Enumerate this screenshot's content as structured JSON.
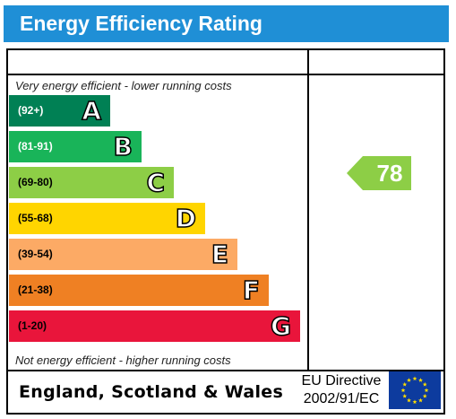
{
  "header": {
    "title": "Energy Efficiency Rating"
  },
  "captions": {
    "top": "Very energy efficient - lower running costs",
    "bottom": "Not energy efficient - higher running costs"
  },
  "bands": [
    {
      "range": "(92+)",
      "letter": "A",
      "color": "#008054",
      "range_color": "#ffffff"
    },
    {
      "range": "(81-91)",
      "letter": "B",
      "color": "#19b459",
      "range_color": "#ffffff"
    },
    {
      "range": "(69-80)",
      "letter": "C",
      "color": "#8dce46",
      "range_color": "#000000"
    },
    {
      "range": "(55-68)",
      "letter": "D",
      "color": "#ffd500",
      "range_color": "#000000"
    },
    {
      "range": "(39-54)",
      "letter": "E",
      "color": "#fcaa65",
      "range_color": "#000000"
    },
    {
      "range": "(21-38)",
      "letter": "F",
      "color": "#ef8023",
      "range_color": "#000000"
    },
    {
      "range": "(1-20)",
      "letter": "G",
      "color": "#e9153b",
      "range_color": "#000000"
    }
  ],
  "current_rating": {
    "value": "78",
    "band": "C",
    "color": "#8dce46"
  },
  "footer": {
    "country": "England, Scotland & Wales",
    "directive_line1": "EU Directive",
    "directive_line2": "2002/91/EC",
    "flag_icon": "eu-flag-icon"
  }
}
